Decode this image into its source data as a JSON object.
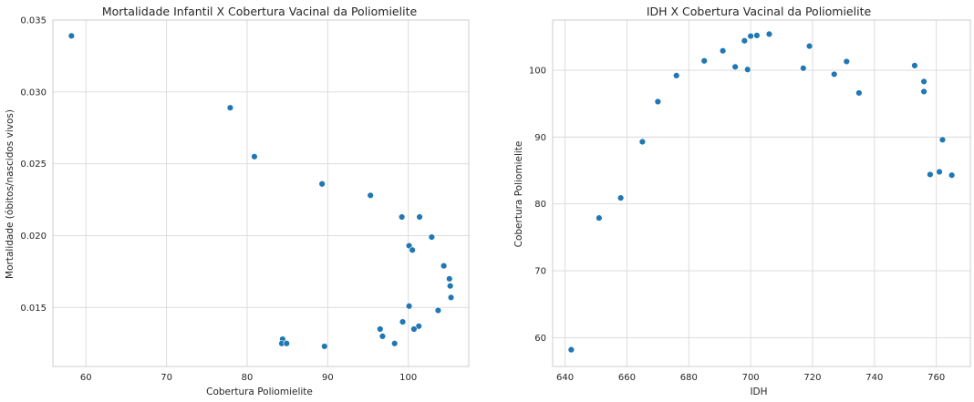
{
  "chart_data": [
    {
      "type": "scatter",
      "title": "Mortalidade Infantil X Cobertura Vacinal da Poliomielite",
      "xlabel": "Cobertura Poliomielite",
      "ylabel": "Mortalidade (óbitos/nascidos vivos)",
      "xlim": [
        55.9,
        107.5
      ],
      "ylim": [
        0.0109,
        0.035
      ],
      "xticks": [
        60,
        70,
        80,
        90,
        100
      ],
      "xtick_labels": [
        "60",
        "70",
        "80",
        "90",
        "100"
      ],
      "yticks": [
        0.015,
        0.02,
        0.025,
        0.03,
        0.035
      ],
      "ytick_labels": [
        "0.015",
        "0.020",
        "0.025",
        "0.030",
        "0.035"
      ],
      "grid": true,
      "color": "#1f77b4",
      "points": [
        {
          "x": 58.2,
          "y": 0.0339
        },
        {
          "x": 77.9,
          "y": 0.0289
        },
        {
          "x": 80.9,
          "y": 0.0255
        },
        {
          "x": 89.3,
          "y": 0.0236
        },
        {
          "x": 95.3,
          "y": 0.0228
        },
        {
          "x": 99.2,
          "y": 0.0213
        },
        {
          "x": 101.4,
          "y": 0.0213
        },
        {
          "x": 102.9,
          "y": 0.0199
        },
        {
          "x": 100.1,
          "y": 0.0193
        },
        {
          "x": 100.5,
          "y": 0.019
        },
        {
          "x": 104.4,
          "y": 0.0179
        },
        {
          "x": 105.1,
          "y": 0.017
        },
        {
          "x": 105.2,
          "y": 0.0165
        },
        {
          "x": 105.3,
          "y": 0.0157
        },
        {
          "x": 100.1,
          "y": 0.0151
        },
        {
          "x": 103.7,
          "y": 0.0148
        },
        {
          "x": 99.3,
          "y": 0.014
        },
        {
          "x": 101.3,
          "y": 0.0137
        },
        {
          "x": 100.7,
          "y": 0.0135
        },
        {
          "x": 96.5,
          "y": 0.0135
        },
        {
          "x": 96.8,
          "y": 0.013
        },
        {
          "x": 84.4,
          "y": 0.0128
        },
        {
          "x": 84.3,
          "y": 0.0125
        },
        {
          "x": 84.9,
          "y": 0.0125
        },
        {
          "x": 98.3,
          "y": 0.0125
        },
        {
          "x": 89.6,
          "y": 0.0123
        }
      ]
    },
    {
      "type": "scatter",
      "title": "IDH X Cobertura Vacinal da Poliomielite",
      "xlabel": "IDH",
      "ylabel": "Cobertura Poliomielite",
      "xlim": [
        636,
        771
      ],
      "ylim": [
        55.7,
        107.5
      ],
      "xticks": [
        640,
        660,
        680,
        700,
        720,
        740,
        760
      ],
      "xtick_labels": [
        "640",
        "660",
        "680",
        "700",
        "720",
        "740",
        "760"
      ],
      "yticks": [
        60,
        70,
        80,
        90,
        100
      ],
      "ytick_labels": [
        "60",
        "70",
        "80",
        "90",
        "100"
      ],
      "grid": true,
      "color": "#1f77b4",
      "points": [
        {
          "x": 642,
          "y": 58.2
        },
        {
          "x": 651,
          "y": 77.9
        },
        {
          "x": 658,
          "y": 80.9
        },
        {
          "x": 665,
          "y": 89.3
        },
        {
          "x": 670,
          "y": 95.3
        },
        {
          "x": 676,
          "y": 99.2
        },
        {
          "x": 685,
          "y": 101.4
        },
        {
          "x": 691,
          "y": 102.9
        },
        {
          "x": 695,
          "y": 100.5
        },
        {
          "x": 698,
          "y": 104.4
        },
        {
          "x": 699,
          "y": 100.1
        },
        {
          "x": 700,
          "y": 105.1
        },
        {
          "x": 702,
          "y": 105.2
        },
        {
          "x": 706,
          "y": 105.4
        },
        {
          "x": 717,
          "y": 100.3
        },
        {
          "x": 719,
          "y": 103.6
        },
        {
          "x": 727,
          "y": 99.4
        },
        {
          "x": 731,
          "y": 101.3
        },
        {
          "x": 735,
          "y": 96.6
        },
        {
          "x": 753,
          "y": 100.7
        },
        {
          "x": 756,
          "y": 98.3
        },
        {
          "x": 756,
          "y": 96.8
        },
        {
          "x": 762,
          "y": 89.6
        },
        {
          "x": 758,
          "y": 84.4
        },
        {
          "x": 761,
          "y": 84.8
        },
        {
          "x": 765,
          "y": 84.3
        }
      ]
    }
  ]
}
